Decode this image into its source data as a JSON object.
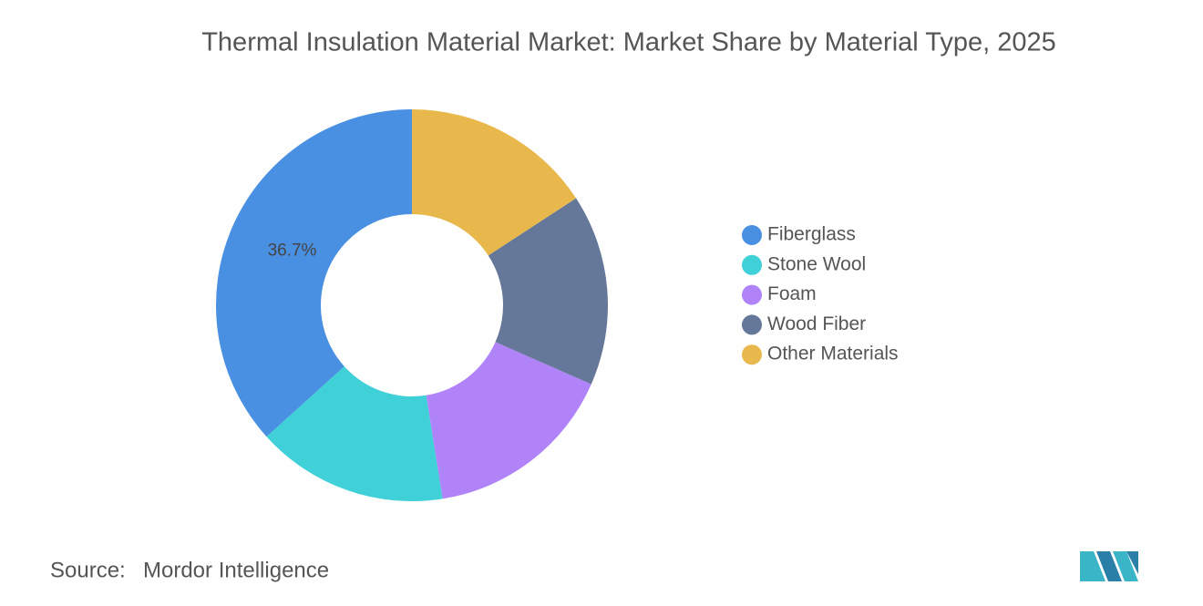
{
  "chart_data": {
    "type": "donut",
    "title": "Thermal Insulation Material Market: Market Share by Material Type, 2025",
    "categories": [
      "Fiberglass",
      "Stone Wool",
      "Foam",
      "Wood Fiber",
      "Other Materials"
    ],
    "values": [
      36.7,
      15.8,
      15.9,
      15.8,
      15.8
    ],
    "value_labels": [
      "36.7%",
      null,
      null,
      null,
      null
    ],
    "colors": [
      "#4a90e2",
      "#40d0d8",
      "#b084f8",
      "#657899",
      "#e8b84c"
    ],
    "legend": "right",
    "source_label": "Source:",
    "source": "Mordor Intelligence"
  }
}
